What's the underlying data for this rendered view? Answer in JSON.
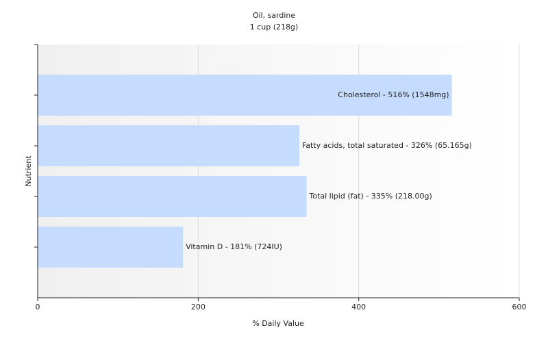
{
  "chart_data": {
    "type": "bar",
    "orientation": "horizontal",
    "title": "Oil, sardine",
    "subtitle": "1 cup (218g)",
    "x_label": "% Daily Value",
    "y_label": "Nutrient",
    "categories": [
      null,
      null,
      null,
      null
    ],
    "values": [
      516,
      326,
      335,
      181
    ],
    "value_labels": [
      "Cholesterol - 516% (1548mg)",
      "Fatty acids, total saturated - 326% (65.165g)",
      "Total lipid (fat) - 335% (218.00g)",
      "Vitamin D - 181% (724IU)"
    ],
    "color": "#c6dcff",
    "xlim": [
      0,
      600
    ],
    "xticks": [
      0,
      200,
      400,
      600
    ],
    "grid": true
  }
}
